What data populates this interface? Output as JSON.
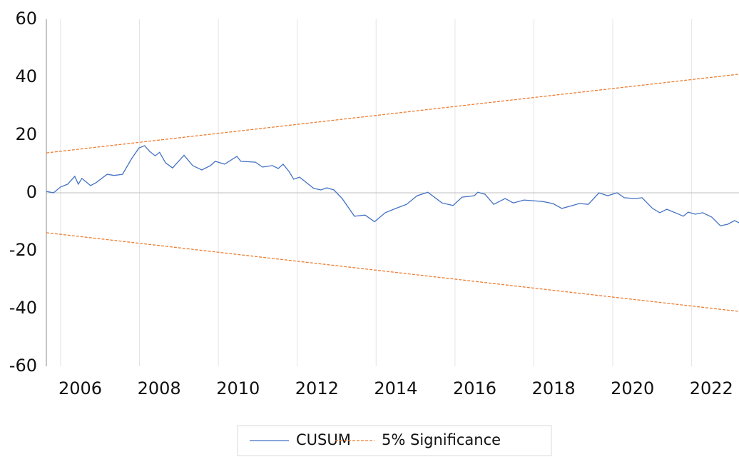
{
  "chart_data": {
    "type": "line",
    "xlim": [
      2005.64,
      2023.2
    ],
    "xticks": [
      2006,
      2008,
      2010,
      2012,
      2014,
      2016,
      2018,
      2020,
      2022
    ],
    "ylim": [
      -60,
      60
    ],
    "yticks": [
      -60,
      -40,
      -20,
      0,
      20,
      40,
      60
    ],
    "grid": true,
    "reference_line": 0,
    "legend": "bottom",
    "series": [
      {
        "name": "CUSUM",
        "color": "#4472c4",
        "style": "solid",
        "x": [
          2005.64,
          2005.82,
          2006.0,
          2006.18,
          2006.36,
          2006.45,
          2006.54,
          2006.76,
          2006.9,
          2007.18,
          2007.36,
          2007.57,
          2007.81,
          2007.99,
          2008.13,
          2008.26,
          2008.4,
          2008.51,
          2008.66,
          2008.84,
          2009.13,
          2009.35,
          2009.58,
          2009.8,
          2009.92,
          2010.16,
          2010.47,
          2010.57,
          2010.94,
          2011.12,
          2011.37,
          2011.52,
          2011.64,
          2011.79,
          2011.91,
          2012.06,
          2012.42,
          2012.6,
          2012.75,
          2012.93,
          2013.14,
          2013.45,
          2013.72,
          2013.96,
          2014.23,
          2014.5,
          2014.77,
          2015.04,
          2015.31,
          2015.67,
          2015.95,
          2016.18,
          2016.49,
          2016.58,
          2016.76,
          2016.98,
          2017.27,
          2017.48,
          2017.75,
          2018.21,
          2018.48,
          2018.71,
          2018.98,
          2019.15,
          2019.38,
          2019.65,
          2019.87,
          2020.11,
          2020.29,
          2020.56,
          2020.74,
          2021.01,
          2021.19,
          2021.37,
          2021.64,
          2021.79,
          2021.91,
          2022.09,
          2022.28,
          2022.51,
          2022.73,
          2022.91,
          2023.09,
          2023.2
        ],
        "values": [
          0.5,
          0,
          2,
          3,
          5.7,
          3,
          5,
          2.5,
          3.5,
          6.4,
          6,
          6.4,
          12,
          15.5,
          16.3,
          14.3,
          12.8,
          14,
          10.4,
          8.6,
          13,
          9.4,
          7.9,
          9.4,
          10.9,
          9.9,
          12.6,
          10.9,
          10.6,
          8.9,
          9.4,
          8.4,
          9.9,
          7.4,
          4.7,
          5.4,
          1.5,
          1,
          1.7,
          1,
          -2,
          -8.1,
          -7.7,
          -10,
          -6.9,
          -5.4,
          -4,
          -1,
          0.2,
          -3.5,
          -4.4,
          -1.5,
          -1,
          0.2,
          -0.5,
          -4,
          -2,
          -3.5,
          -2.5,
          -3,
          -3.7,
          -5.4,
          -4.4,
          -3.7,
          -4,
          0,
          -1,
          0,
          -1.7,
          -2,
          -1.7,
          -5.4,
          -6.9,
          -5.7,
          -7.2,
          -8.1,
          -6.7,
          -7.4,
          -6.9,
          -8.4,
          -11.4,
          -10.9,
          -9.6,
          -10.4
        ]
      },
      {
        "name": "5% Significance",
        "color": "#ed7d31",
        "style": "dashed",
        "x": [
          2005.64,
          2023.2
        ],
        "values": [
          13.8,
          41
        ],
        "lower_values": [
          -13.8,
          -41
        ]
      }
    ]
  }
}
